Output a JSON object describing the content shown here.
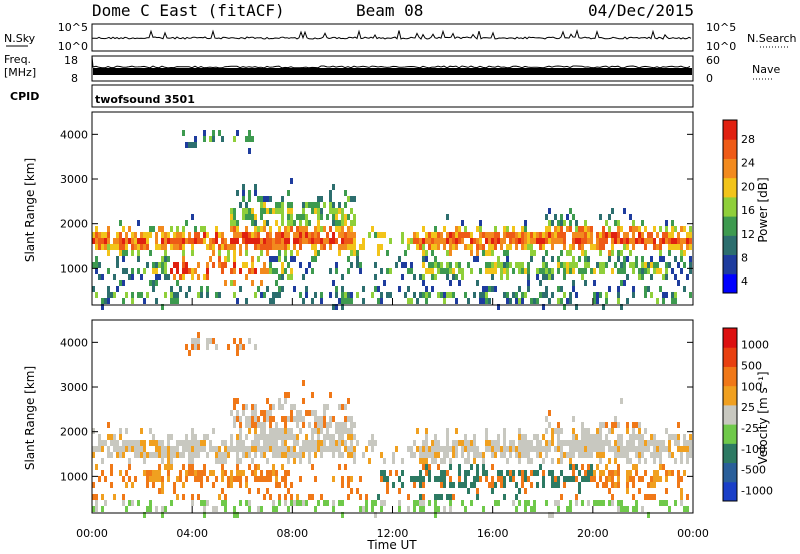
{
  "header": {
    "site": "Dome C East (fitACF)",
    "beam": "Beam 08",
    "date": "04/Dec/2015"
  },
  "top_panels": {
    "nsky_label": "N.Sky",
    "nsky_ticks": [
      "10^5",
      "10^0"
    ],
    "nsearch_label": "N.Search",
    "nsearch_ticks": [
      "10^5",
      "10^0"
    ],
    "freq_label_1": "Freq.",
    "freq_label_2": "[MHz]",
    "freq_ticks": [
      "18",
      "8"
    ],
    "nave_label": "Nave",
    "nave_ticks": [
      "60",
      "0"
    ],
    "cpid_label": "CPID",
    "cpid_value": "twofsound 3501"
  },
  "chart_data": [
    {
      "type": "heatmap",
      "name": "power",
      "ylabel": "Slant Range [km]",
      "yticks": [
        "4000",
        "3000",
        "2000",
        "1000"
      ],
      "xlabel": "Time UT",
      "xticks": [
        "00:00",
        "04:00",
        "08:00",
        "12:00",
        "16:00",
        "20:00",
        "00:00"
      ],
      "colorbar_label": "Power [dB]",
      "colorbar_ticks": [
        "28",
        "24",
        "20",
        "16",
        "12",
        "8",
        "4"
      ],
      "colors": [
        "#0000ff",
        "#1e3c9e",
        "#2c6e6e",
        "#3d9a4f",
        "#8fcf3a",
        "#f2c41a",
        "#f28a1e",
        "#ee5a16",
        "#e02010"
      ],
      "ylim": [
        180,
        4500
      ],
      "xlim_hours": [
        0,
        24
      ]
    },
    {
      "type": "heatmap",
      "name": "velocity",
      "ylabel": "Slant Range [km]",
      "yticks": [
        "4000",
        "3000",
        "2000",
        "1000"
      ],
      "xlabel": "Time UT",
      "xticks": [
        "00:00",
        "04:00",
        "08:00",
        "12:00",
        "16:00",
        "20:00",
        "00:00"
      ],
      "colorbar_label": "Velocity [m s⁻¹]",
      "colorbar_ticks": [
        "1000",
        "500",
        "100",
        "25",
        "-25",
        "-100",
        "-500",
        "-1000"
      ],
      "colors": [
        "#1a3fc8",
        "#2a5f9a",
        "#2d7a63",
        "#6fc94a",
        "#c8c8c0",
        "#f0a020",
        "#f07818",
        "#e84010",
        "#dc1010"
      ],
      "ylim": [
        180,
        4500
      ],
      "xlim_hours": [
        0,
        24
      ]
    }
  ]
}
